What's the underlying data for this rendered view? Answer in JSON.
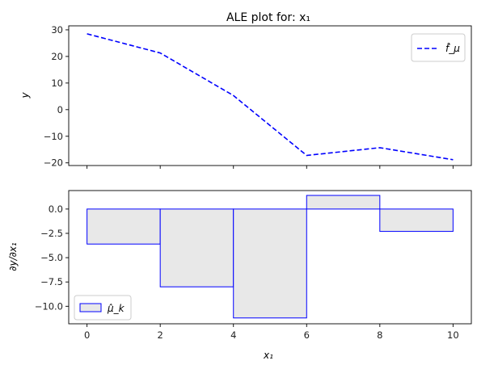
{
  "chart_data": [
    {
      "type": "line",
      "title": "ALE plot for: x₁",
      "xlabel": "",
      "ylabel": "y",
      "xlim": [
        -0.5,
        10.5
      ],
      "ylim": [
        -21,
        31.5
      ],
      "yticks": [
        -20,
        -10,
        0,
        10,
        20,
        30
      ],
      "ytick_labels": [
        "−20",
        "−10",
        "0",
        "10",
        "20",
        "30"
      ],
      "xticks": [
        0,
        2,
        4,
        6,
        8,
        10
      ],
      "xtick_labels_visible": false,
      "series": [
        {
          "name": "f̂_μ",
          "style": "dashed",
          "color": "#0000ff",
          "x": [
            0,
            2,
            4,
            6,
            8,
            10
          ],
          "y": [
            28.5,
            21.3,
            5.3,
            -17.2,
            -14.3,
            -18.8
          ]
        }
      ],
      "legend": {
        "position": "top-right",
        "label": "f̂_μ"
      },
      "grid": false
    },
    {
      "type": "bar",
      "title": "",
      "xlabel": "x₁",
      "ylabel": "∂y/∂x₁",
      "xlim": [
        -0.5,
        10.5
      ],
      "ylim": [
        -11.8,
        1.9
      ],
      "yticks": [
        0.0,
        -2.5,
        -5.0,
        -7.5,
        -10.0
      ],
      "ytick_labels": [
        "0.0",
        "−2.5",
        "−5.0",
        "−7.5",
        "−10.0"
      ],
      "xticks": [
        0,
        2,
        4,
        6,
        8,
        10
      ],
      "xtick_labels": [
        "0",
        "2",
        "4",
        "6",
        "8",
        "10"
      ],
      "bins": [
        {
          "x0": 0,
          "x1": 2,
          "value": -3.6
        },
        {
          "x0": 2,
          "x1": 4,
          "value": -8.0
        },
        {
          "x0": 4,
          "x1": 6,
          "value": -11.2
        },
        {
          "x0": 6,
          "x1": 8,
          "value": 1.4
        },
        {
          "x0": 8,
          "x1": 10,
          "value": -2.3
        }
      ],
      "bar_fill": "#e8e8e8",
      "bar_edge": "#0000ff",
      "legend": {
        "position": "bottom-left",
        "label": "μ̂_k"
      },
      "grid": false
    }
  ]
}
